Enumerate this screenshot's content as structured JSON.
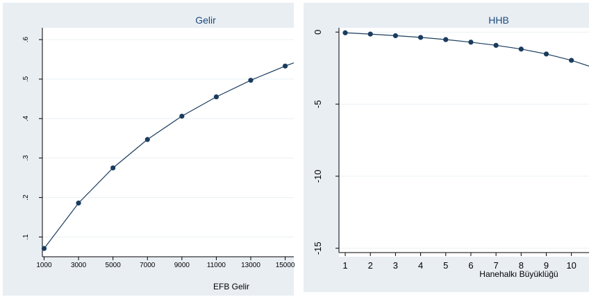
{
  "chart_data": [
    {
      "type": "line",
      "title": "Gelir",
      "xlabel": "EFB Gelir",
      "ylabel": "",
      "x": [
        1000,
        3000,
        5000,
        7000,
        9000,
        11000,
        13000,
        15000
      ],
      "values": [
        0.071,
        0.186,
        0.275,
        0.347,
        0.406,
        0.455,
        0.497,
        0.533
      ],
      "x_ticks": [
        "1000",
        "3000",
        "5000",
        "7000",
        "9000",
        "11000",
        "13000",
        "15000"
      ],
      "y_ticks": [
        ".1",
        ".2",
        ".3",
        ".4",
        ".5",
        ".6"
      ],
      "xlim": [
        900,
        15500
      ],
      "ylim": [
        0.05,
        0.63
      ],
      "grid": true,
      "markers": true
    },
    {
      "type": "line",
      "title": "HHB",
      "xlabel": "Hanehalkı Büyüklüğü",
      "ylabel": "",
      "x": [
        1,
        2,
        3,
        4,
        5,
        6,
        7,
        8,
        9,
        10
      ],
      "values": [
        -0.05,
        -0.14,
        -0.25,
        -0.37,
        -0.52,
        -0.7,
        -0.92,
        -1.18,
        -1.52,
        -1.96
      ],
      "x_ticks": [
        "1",
        "2",
        "3",
        "4",
        "5",
        "6",
        "7",
        "8",
        "9",
        "10"
      ],
      "y_ticks": [
        "0",
        "-5",
        "-10",
        "-15"
      ],
      "xlim": [
        0.75,
        10.7
      ],
      "ylim": [
        -15.3,
        0.3
      ],
      "grid": true,
      "markers": true
    }
  ]
}
